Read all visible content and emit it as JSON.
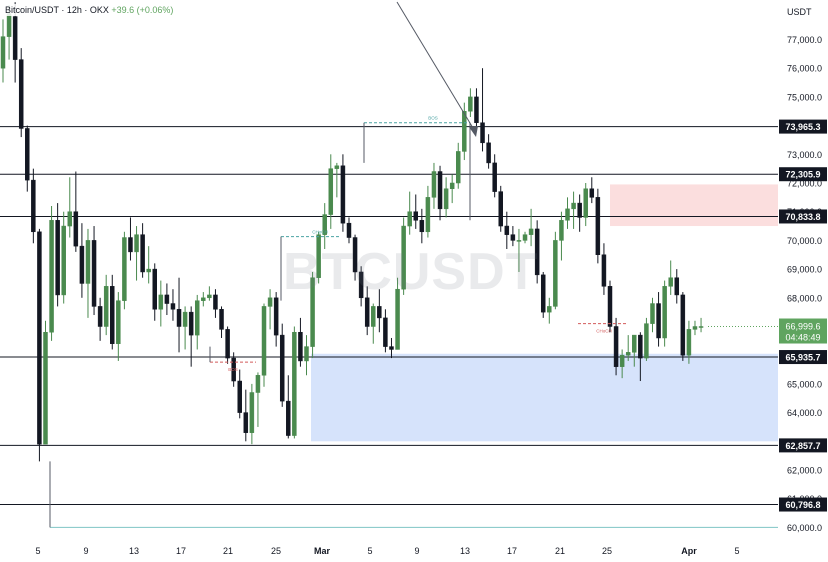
{
  "header": {
    "symbol": "Bitcoin/USDT · 12h · OKX",
    "change": "+39.6 (+0.06%)"
  },
  "watermark": "BTCUSDT",
  "axis": {
    "currency": "USDT"
  },
  "colors": {
    "bull": "#4a8a4e",
    "bear": "#131722",
    "accent_green": "#5fa45f",
    "axis_text": "#131722",
    "level_line": "#131722",
    "demand_zone": "#d6e3fb",
    "supply_zone": "#fbdede",
    "bos_line": "#4aa3a3",
    "choch_red": "#d25b5b",
    "bottom_line": "#7fc4c4"
  },
  "chart_data": {
    "type": "candlestick",
    "timeframe": "12h",
    "exchange": "OKX",
    "ylim": [
      59700,
      78400
    ],
    "y_ticks": [
      60000,
      61000,
      62000,
      63000,
      64000,
      65000,
      66000,
      67000,
      68000,
      69000,
      70000,
      71000,
      72000,
      73000,
      74000,
      75000,
      76000,
      77000
    ],
    "x_ticks": [
      "5",
      "9",
      "13",
      "17",
      "21",
      "25",
      "Mar",
      "5",
      "9",
      "13",
      "17",
      "21",
      "25",
      "Apr",
      "5"
    ],
    "current_price": "66,999.6",
    "countdown": "04:48:49",
    "levels": [
      {
        "value": 73965.3,
        "label": "73,965.3"
      },
      {
        "value": 72305.9,
        "label": "72,305.9"
      },
      {
        "value": 70833.8,
        "label": "70,833.8"
      },
      {
        "value": 65935.7,
        "label": "65,935.7"
      },
      {
        "value": 62857.7,
        "label": "62,857.7"
      },
      {
        "value": 60796.8,
        "label": "60,796.8"
      }
    ],
    "bottom_line": 60000,
    "zones": [
      {
        "kind": "demand",
        "top": 66050,
        "bottom": 63000,
        "from": "Feb 29",
        "to": "right edge"
      },
      {
        "kind": "supply",
        "top": 71950,
        "bottom": 70500,
        "from": "Mar 25",
        "to": "right edge"
      }
    ],
    "annotations": [
      {
        "text": "BOS",
        "color": "bos_line",
        "price": 74100
      },
      {
        "text": "CHoCH",
        "color": "bos_line",
        "price": 70130
      },
      {
        "text": "BOS",
        "color": "choch_red",
        "price": 65760
      },
      {
        "text": "CHoCH",
        "color": "choch_red",
        "price": 67100
      }
    ],
    "candles": [
      [
        76000,
        77700,
        75500,
        77100
      ],
      [
        77100,
        78200,
        76300,
        77900
      ],
      [
        77800,
        78300,
        75500,
        76300
      ],
      [
        76300,
        76700,
        73600,
        73900
      ],
      [
        73900,
        74000,
        71700,
        72100
      ],
      [
        72100,
        72500,
        69900,
        70300
      ],
      [
        70300,
        70400,
        62300,
        62900
      ],
      [
        62900,
        67200,
        62900,
        66800
      ],
      [
        66800,
        71200,
        66500,
        70700
      ],
      [
        70700,
        71300,
        67700,
        68100
      ],
      [
        68100,
        71000,
        67800,
        70500
      ],
      [
        70500,
        72200,
        70100,
        71000
      ],
      [
        71000,
        72400,
        69600,
        69800
      ],
      [
        69800,
        70600,
        68000,
        68500
      ],
      [
        68500,
        70400,
        67300,
        70000
      ],
      [
        70000,
        70500,
        67400,
        67700
      ],
      [
        67700,
        68000,
        66500,
        67000
      ],
      [
        67000,
        68800,
        66700,
        68400
      ],
      [
        68400,
        68800,
        66200,
        66400
      ],
      [
        66400,
        68200,
        65800,
        67900
      ],
      [
        67900,
        70300,
        67600,
        70100
      ],
      [
        70100,
        70800,
        69300,
        69600
      ],
      [
        69600,
        70500,
        68600,
        70200
      ],
      [
        70200,
        70600,
        68700,
        68900
      ],
      [
        68900,
        69800,
        68500,
        69000
      ],
      [
        69000,
        69200,
        67200,
        67600
      ],
      [
        67600,
        68600,
        67000,
        68100
      ],
      [
        68100,
        68500,
        67400,
        67800
      ],
      [
        67800,
        68300,
        67200,
        67600
      ],
      [
        67600,
        68700,
        66100,
        67000
      ],
      [
        67000,
        67700,
        66200,
        67500
      ],
      [
        67500,
        67700,
        65600,
        66700
      ],
      [
        66700,
        68100,
        66200,
        67900
      ],
      [
        67900,
        68200,
        67700,
        68000
      ],
      [
        68000,
        68400,
        67900,
        68100
      ],
      [
        68100,
        68300,
        67300,
        67600
      ],
      [
        67600,
        67700,
        66600,
        66900
      ],
      [
        66900,
        67000,
        65700,
        65900
      ],
      [
        65900,
        66100,
        64900,
        65100
      ],
      [
        65100,
        65500,
        63800,
        64000
      ],
      [
        64000,
        64800,
        63000,
        63300
      ],
      [
        63300,
        65000,
        62900,
        64700
      ],
      [
        64700,
        65400,
        63500,
        65300
      ],
      [
        65300,
        67800,
        64900,
        67700
      ],
      [
        67700,
        68300,
        66900,
        68000
      ],
      [
        68000,
        68200,
        66300,
        66700
      ],
      [
        66700,
        67100,
        64200,
        64400
      ],
      [
        64400,
        65300,
        63100,
        63200
      ],
      [
        63200,
        67000,
        63100,
        66800
      ],
      [
        66800,
        67300,
        65600,
        65800
      ],
      [
        65800,
        66700,
        65300,
        66300
      ],
      [
        66300,
        68900,
        65900,
        68700
      ],
      [
        68700,
        70300,
        68500,
        70200
      ],
      [
        70200,
        71300,
        69700,
        70900
      ],
      [
        70900,
        73000,
        70400,
        72500
      ],
      [
        72500,
        72700,
        71500,
        72600
      ],
      [
        72600,
        73000,
        70300,
        70600
      ],
      [
        70600,
        70800,
        69900,
        70100
      ],
      [
        70100,
        70200,
        68600,
        68900
      ],
      [
        68900,
        69100,
        67700,
        68000
      ],
      [
        68000,
        68400,
        66700,
        67000
      ],
      [
        67000,
        67800,
        66400,
        67700
      ],
      [
        67700,
        68300,
        66800,
        67300
      ],
      [
        67300,
        67600,
        66100,
        66300
      ],
      [
        66300,
        66600,
        65900,
        66200
      ],
      [
        66200,
        68700,
        66200,
        68300
      ],
      [
        68300,
        70800,
        68100,
        70500
      ],
      [
        70500,
        71700,
        70200,
        71000
      ],
      [
        71000,
        71600,
        70400,
        70700
      ],
      [
        70700,
        71100,
        69900,
        70300
      ],
      [
        70300,
        71900,
        70100,
        71500
      ],
      [
        71500,
        72700,
        71100,
        72400
      ],
      [
        72400,
        72600,
        70700,
        71100
      ],
      [
        71100,
        72200,
        70800,
        71800
      ],
      [
        71800,
        72300,
        71300,
        72000
      ],
      [
        72000,
        73400,
        71800,
        73100
      ],
      [
        73100,
        74800,
        72800,
        74500
      ],
      [
        74500,
        75300,
        74300,
        75000
      ],
      [
        75000,
        75300,
        73900,
        74100
      ],
      [
        74100,
        76000,
        73100,
        73400
      ],
      [
        73400,
        73700,
        72500,
        72700
      ],
      [
        72700,
        73000,
        71500,
        71700
      ],
      [
        71700,
        71900,
        70300,
        70500
      ],
      [
        70500,
        71000,
        69700,
        70200
      ],
      [
        70200,
        70500,
        69800,
        70000
      ],
      [
        70000,
        70400,
        68900,
        70000
      ],
      [
        70000,
        70300,
        69900,
        70200
      ],
      [
        70200,
        71100,
        69800,
        70400
      ],
      [
        70400,
        70700,
        68500,
        68800
      ],
      [
        68800,
        68900,
        67300,
        67500
      ],
      [
        67500,
        68000,
        67100,
        67700
      ],
      [
        67700,
        70300,
        67600,
        70000
      ],
      [
        70000,
        71000,
        69300,
        70700
      ],
      [
        70700,
        71500,
        70400,
        71100
      ],
      [
        71100,
        71700,
        70400,
        71300
      ],
      [
        71300,
        71600,
        70300,
        70800
      ],
      [
        70800,
        72000,
        70500,
        71800
      ],
      [
        71800,
        72200,
        71300,
        71500
      ],
      [
        71500,
        71800,
        69200,
        69500
      ],
      [
        69500,
        69900,
        68100,
        68400
      ],
      [
        68400,
        68600,
        66800,
        67000
      ],
      [
        67000,
        67300,
        65300,
        65600
      ],
      [
        65600,
        66200,
        65200,
        66000
      ],
      [
        66000,
        66700,
        65800,
        66100
      ],
      [
        66100,
        66700,
        65600,
        66700
      ],
      [
        66700,
        66800,
        65100,
        65900
      ],
      [
        65900,
        67300,
        65800,
        67100
      ],
      [
        67100,
        68000,
        66800,
        67800
      ],
      [
        67800,
        68200,
        66300,
        66600
      ],
      [
        66600,
        68600,
        66300,
        68400
      ],
      [
        68400,
        69300,
        68100,
        68700
      ],
      [
        68700,
        69000,
        67800,
        68100
      ],
      [
        68100,
        68200,
        65800,
        66000
      ],
      [
        66000,
        67200,
        65700,
        66900
      ],
      [
        66900,
        67200,
        66700,
        67000
      ],
      [
        67000,
        67300,
        66800,
        67000
      ]
    ]
  }
}
